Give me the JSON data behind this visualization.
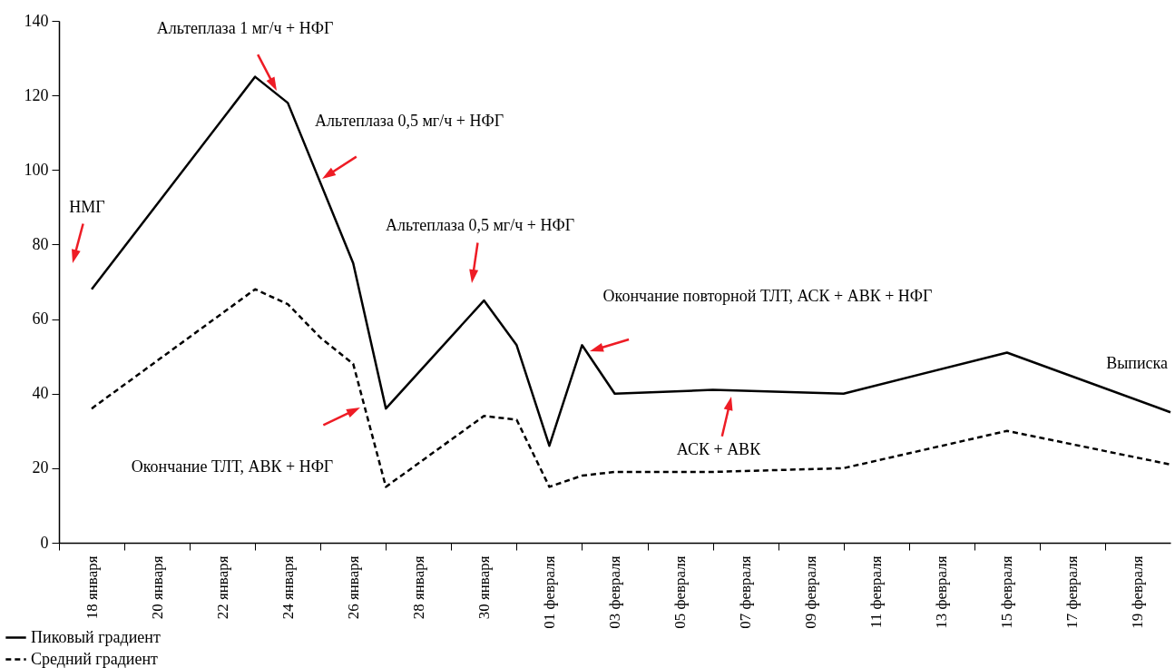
{
  "chart_data": {
    "type": "line",
    "xlim": [
      "--01-17",
      "--02-20"
    ],
    "ylim": [
      0,
      140
    ],
    "yticks": [
      0,
      20,
      40,
      60,
      80,
      100,
      120,
      140
    ],
    "xticks": [
      {
        "value": "--01-18",
        "label": "18 января"
      },
      {
        "value": "--01-20",
        "label": "20 января"
      },
      {
        "value": "--01-22",
        "label": "22 января"
      },
      {
        "value": "--01-24",
        "label": "24 января"
      },
      {
        "value": "--01-26",
        "label": "26 января"
      },
      {
        "value": "--01-28",
        "label": "28 января"
      },
      {
        "value": "--01-30",
        "label": "30 января"
      },
      {
        "value": "--02-01",
        "label": "01 февраля"
      },
      {
        "value": "--02-03",
        "label": "03 февраля"
      },
      {
        "value": "--02-05",
        "label": "05 февраля"
      },
      {
        "value": "--02-07",
        "label": "07 февраля"
      },
      {
        "value": "--02-09",
        "label": "09 февраля"
      },
      {
        "value": "--02-11",
        "label": "11 февраля"
      },
      {
        "value": "--02-13",
        "label": "13 февраля"
      },
      {
        "value": "--02-15",
        "label": "15 февраля"
      },
      {
        "value": "--02-17",
        "label": "17 февраля"
      },
      {
        "value": "--02-19",
        "label": "19 февраля"
      }
    ],
    "series": [
      {
        "name": "Пиковый градиент",
        "color": "#000000",
        "line_style": "solid",
        "x": [
          "--01-18",
          "--01-23",
          "--01-24",
          "--01-26",
          "--01-27",
          "--01-30",
          "--01-31",
          "--02-01",
          "--02-02",
          "--02-03",
          "--02-06",
          "--02-10",
          "--02-15",
          "--02-20"
        ],
        "values": [
          68,
          125,
          118,
          75,
          36,
          65,
          53,
          26,
          53,
          40,
          41,
          40,
          51,
          35
        ]
      },
      {
        "name": "Средний градиент",
        "color": "#000000",
        "line_style": "dashed",
        "x": [
          "--01-18",
          "--01-23",
          "--01-24",
          "--01-25",
          "--01-26",
          "--01-27",
          "--01-30",
          "--01-31",
          "--02-01",
          "--02-02",
          "--02-03",
          "--02-06",
          "--02-10",
          "--02-15",
          "--02-20"
        ],
        "values": [
          36,
          68,
          64,
          55,
          48,
          15,
          34,
          33,
          15,
          18,
          19,
          19,
          20,
          30,
          21
        ]
      }
    ],
    "annotations": [
      "НМГ",
      "Альтеплаза 1 мг/ч + НФГ",
      "Альтеплаза 0,5 мг/ч + НФГ",
      "Альтеплаза 0,5 мг/ч + НФГ",
      "Окончание повторной ТЛТ, АСК + АВК + НФГ",
      "Окончание ТЛТ, АВК + НФГ",
      "АСК + АВК",
      "Выписка"
    ],
    "legend": "bottom left",
    "grid": false
  }
}
